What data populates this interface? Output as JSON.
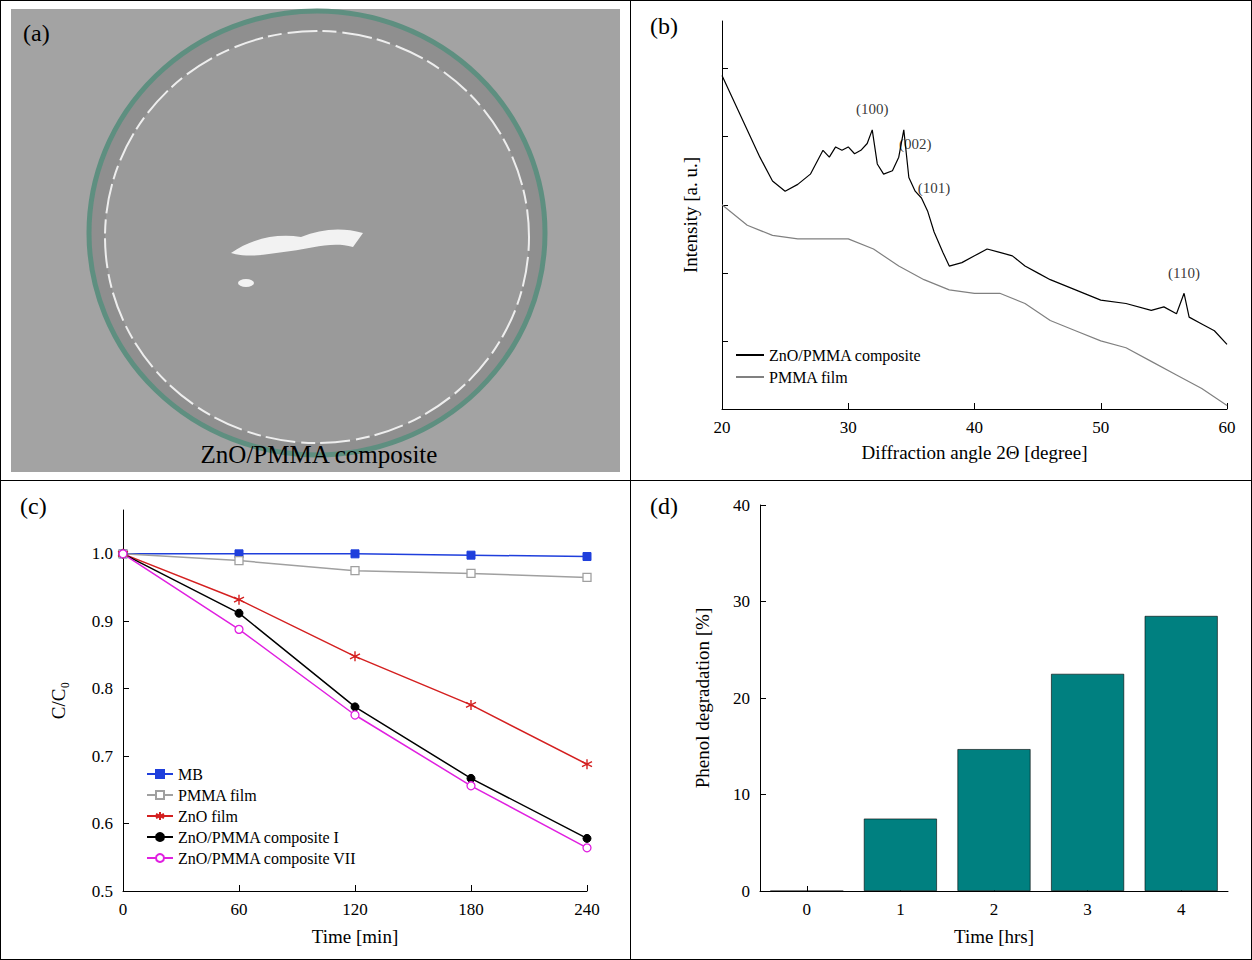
{
  "chart_data": [
    {
      "type": "photo",
      "panel": "(a)",
      "caption": "ZnO/PMMA composite"
    },
    {
      "type": "line",
      "panel": "(b)",
      "x_label": "Diffraction angle 2Θ [degree]",
      "y_label": "Intensity [a. u.]",
      "xlim": [
        20,
        60
      ],
      "xticks": [
        20,
        30,
        40,
        50,
        60
      ],
      "ylim": [
        0,
        11.4
      ],
      "yticks": [
        0,
        2,
        4,
        6,
        8,
        10
      ],
      "tick_labels": "x",
      "grid": false,
      "legend": "lower left",
      "series": [
        {
          "name": "ZnO/PMMA composite",
          "color": "#000000",
          "line_style": "solid",
          "x": [
            20,
            21,
            22,
            23,
            24,
            25,
            26,
            27,
            28,
            28.5,
            29,
            29.5,
            30,
            30.5,
            31,
            31.5,
            31.9,
            32.3,
            32.8,
            33.5,
            34,
            34.4,
            34.8,
            35.3,
            35.8,
            36.3,
            36.8,
            37.5,
            38,
            39,
            40,
            41,
            42,
            43,
            44,
            45,
            46,
            48,
            50,
            52,
            54,
            55,
            56,
            56.6,
            57,
            58,
            59,
            60
          ],
          "values": [
            9.8,
            9.0,
            8.2,
            7.4,
            6.7,
            6.4,
            6.6,
            6.9,
            7.6,
            7.4,
            7.7,
            7.6,
            7.7,
            7.5,
            7.6,
            7.8,
            8.2,
            7.2,
            6.9,
            7.0,
            7.4,
            8.2,
            6.8,
            6.4,
            6.2,
            5.8,
            5.2,
            4.6,
            4.2,
            4.3,
            4.5,
            4.7,
            4.6,
            4.5,
            4.2,
            4.0,
            3.8,
            3.5,
            3.2,
            3.1,
            2.9,
            3.0,
            2.8,
            3.4,
            2.7,
            2.5,
            2.3,
            1.9
          ]
        },
        {
          "name": "PMMA film",
          "color": "#808080",
          "line_style": "solid",
          "x": [
            20,
            22,
            24,
            26,
            28,
            30,
            32,
            34,
            36,
            38,
            40,
            42,
            44,
            46,
            48,
            50,
            52,
            54,
            56,
            58,
            60
          ],
          "values": [
            6.0,
            5.4,
            5.1,
            5.0,
            5.0,
            5.0,
            4.7,
            4.2,
            3.8,
            3.5,
            3.4,
            3.4,
            3.1,
            2.6,
            2.3,
            2.0,
            1.8,
            1.4,
            1.0,
            0.6,
            0.1
          ]
        }
      ],
      "annotations": [
        {
          "text": "(100)",
          "x": 31.9,
          "y": 8.8
        },
        {
          "text": "(002)",
          "x": 35.3,
          "y": 7.8
        },
        {
          "text": "(101)",
          "x": 36.8,
          "y": 6.5
        },
        {
          "text": "(110)",
          "x": 56.6,
          "y": 4.0
        }
      ]
    },
    {
      "type": "line",
      "panel": "(c)",
      "x_label": "Time [min]",
      "y_label": "C/C₀",
      "xlim": [
        0,
        240
      ],
      "xticks": [
        0,
        60,
        120,
        180,
        240
      ],
      "ylim": [
        0.5,
        1.065
      ],
      "yticks": [
        0.5,
        0.6,
        0.7,
        0.8,
        0.9,
        {
          "value": 1,
          "label": "1.0"
        }
      ],
      "grid": false,
      "legend": "lower left",
      "x": [
        0,
        60,
        120,
        180,
        240
      ],
      "series": [
        {
          "name": "MB",
          "color": "#1f3fdc",
          "marker": "square",
          "values": [
            1.0,
            1.0,
            1.0,
            0.998,
            0.996
          ]
        },
        {
          "name": "PMMA film",
          "color": "#a0a0a0",
          "marker": "open_square",
          "values": [
            1.0,
            0.99,
            0.975,
            0.971,
            0.965
          ]
        },
        {
          "name": "ZnO film",
          "color": "#d42020",
          "marker": "asterisk",
          "values": [
            1.0,
            0.932,
            0.848,
            0.776,
            0.688
          ]
        },
        {
          "name": "ZnO/PMMA composite I",
          "color": "#000000",
          "marker": "circle",
          "values": [
            1.0,
            0.912,
            0.773,
            0.667,
            0.578
          ]
        },
        {
          "name": "ZnO/PMMA composite VII",
          "color": "#e020e0",
          "marker": "open_circle",
          "values": [
            1.0,
            0.888,
            0.761,
            0.656,
            0.564
          ]
        }
      ]
    },
    {
      "type": "bar",
      "panel": "(d)",
      "x_label": "Time [hrs]",
      "y_label": "Phenol degradation [%]",
      "categories": [
        "0",
        "1",
        "2",
        "3",
        "4"
      ],
      "values": [
        0,
        7.5,
        14.7,
        22.5,
        28.5
      ],
      "color": "#008080",
      "ylim": [
        0,
        40
      ],
      "yticks": [
        0,
        10,
        20,
        30,
        40
      ],
      "grid": false
    }
  ]
}
